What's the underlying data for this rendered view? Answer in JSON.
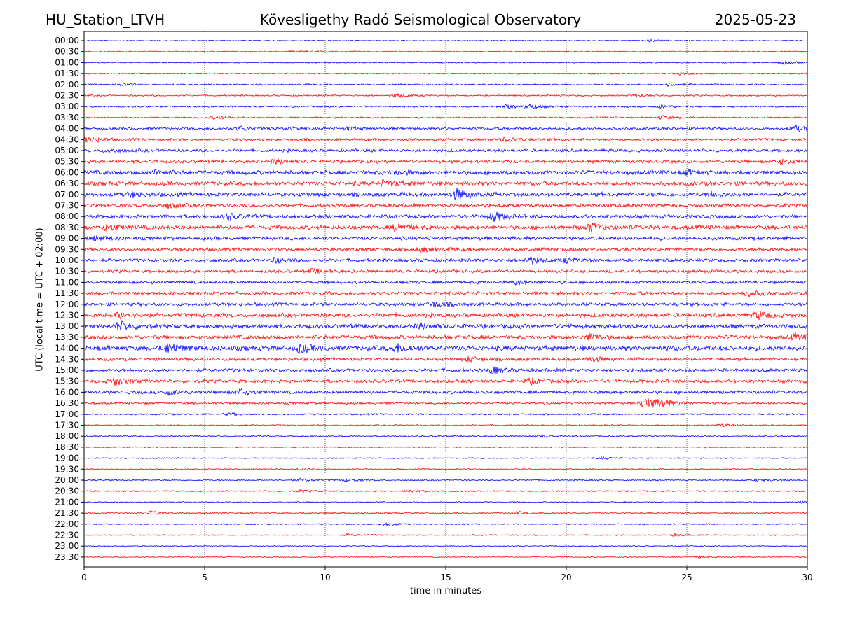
{
  "header": {
    "station": "HU_Station_LTVH",
    "title": "Kövesligethy Radó Seismological Observatory",
    "date": "2025-05-23"
  },
  "chart_data": {
    "type": "line",
    "xlabel": "time in minutes",
    "ylabel": "UTC (local time = UTC + 02:00)",
    "xlim": [
      0,
      30
    ],
    "x_ticks": [
      "0",
      "5",
      "10",
      "15",
      "20",
      "25",
      "30"
    ],
    "grid": "dotted vertical lines at 5-minute intervals",
    "trace_colors": [
      "#0000ff",
      "#ff0000"
    ],
    "rows": [
      {
        "label": "00:00",
        "noise": 0.6,
        "events": [
          [
            23.5,
            1.2
          ]
        ]
      },
      {
        "label": "00:30",
        "noise": 0.7,
        "events": [
          [
            8.8,
            1.6
          ]
        ]
      },
      {
        "label": "01:00",
        "noise": 0.7,
        "events": [
          [
            29,
            2.0
          ]
        ]
      },
      {
        "label": "01:30",
        "noise": 0.8,
        "events": [
          [
            24.8,
            2.0
          ]
        ]
      },
      {
        "label": "02:00",
        "noise": 0.9,
        "events": [
          [
            1.5,
            1.8
          ],
          [
            24.3,
            2.2
          ]
        ]
      },
      {
        "label": "02:30",
        "noise": 0.9,
        "events": [
          [
            13,
            2.5
          ],
          [
            23,
            2.2
          ]
        ]
      },
      {
        "label": "03:00",
        "noise": 1.0,
        "events": [
          [
            17.5,
            2.5
          ],
          [
            18.5,
            3
          ],
          [
            24,
            2.5
          ]
        ]
      },
      {
        "label": "03:30",
        "noise": 1.0,
        "events": [
          [
            5.5,
            2
          ],
          [
            24,
            2.5
          ]
        ]
      },
      {
        "label": "04:00",
        "noise": 1.5,
        "events": [
          [
            6.5,
            3
          ],
          [
            8.5,
            2
          ],
          [
            11,
            2
          ],
          [
            29.5,
            4
          ]
        ]
      },
      {
        "label": "04:30",
        "noise": 1.6,
        "events": [
          [
            0.2,
            4
          ],
          [
            17.5,
            3
          ]
        ]
      },
      {
        "label": "05:00",
        "noise": 1.8,
        "events": [
          [
            1,
            2.5
          ]
        ]
      },
      {
        "label": "05:30",
        "noise": 2.0,
        "events": [
          [
            8,
            2.5
          ],
          [
            29,
            3
          ]
        ]
      },
      {
        "label": "06:00",
        "noise": 2.5,
        "events": [
          [
            3,
            3
          ],
          [
            13,
            2.5
          ],
          [
            25,
            3
          ]
        ]
      },
      {
        "label": "06:30",
        "noise": 2.5,
        "events": [
          [
            12.5,
            4
          ]
        ]
      },
      {
        "label": "07:00",
        "noise": 2.5,
        "events": [
          [
            2,
            3
          ],
          [
            15.5,
            7
          ],
          [
            26,
            3
          ]
        ]
      },
      {
        "label": "07:30",
        "noise": 2.0,
        "events": [
          [
            3.5,
            3
          ]
        ]
      },
      {
        "label": "08:00",
        "noise": 2.2,
        "events": [
          [
            6,
            4
          ],
          [
            17,
            6
          ]
        ]
      },
      {
        "label": "08:30",
        "noise": 2.5,
        "events": [
          [
            1,
            4
          ],
          [
            13,
            5
          ],
          [
            21,
            6
          ]
        ]
      },
      {
        "label": "09:00",
        "noise": 2.2,
        "events": [
          [
            0.5,
            3
          ]
        ]
      },
      {
        "label": "09:30",
        "noise": 2.0,
        "events": [
          [
            14,
            3
          ]
        ]
      },
      {
        "label": "10:00",
        "noise": 2.0,
        "events": [
          [
            8,
            3
          ],
          [
            18.5,
            4.5
          ],
          [
            20,
            3
          ]
        ]
      },
      {
        "label": "10:30",
        "noise": 1.8,
        "events": [
          [
            9.5,
            3
          ]
        ]
      },
      {
        "label": "11:00",
        "noise": 1.8,
        "events": [
          [
            18,
            2.5
          ]
        ]
      },
      {
        "label": "11:30",
        "noise": 2.0,
        "events": [
          [
            27.5,
            4
          ]
        ]
      },
      {
        "label": "12:00",
        "noise": 2.0,
        "events": [
          [
            14.5,
            3.5
          ]
        ]
      },
      {
        "label": "12:30",
        "noise": 2.5,
        "events": [
          [
            1.5,
            4
          ],
          [
            28,
            4.5
          ]
        ]
      },
      {
        "label": "13:00",
        "noise": 2.5,
        "events": [
          [
            1.5,
            6
          ],
          [
            14,
            3
          ]
        ]
      },
      {
        "label": "13:30",
        "noise": 2.5,
        "events": [
          [
            21,
            5
          ],
          [
            29.5,
            4
          ]
        ]
      },
      {
        "label": "14:00",
        "noise": 3.0,
        "events": [
          [
            3.5,
            6
          ],
          [
            9,
            5
          ],
          [
            13,
            5
          ]
        ]
      },
      {
        "label": "14:30",
        "noise": 2.0,
        "events": [
          [
            16,
            3
          ],
          [
            21,
            3
          ]
        ]
      },
      {
        "label": "15:00",
        "noise": 2.0,
        "events": [
          [
            17,
            4.5
          ]
        ]
      },
      {
        "label": "15:30",
        "noise": 2.0,
        "events": [
          [
            1.3,
            5
          ],
          [
            18.5,
            3.5
          ]
        ]
      },
      {
        "label": "16:00",
        "noise": 2.0,
        "events": [
          [
            3.5,
            3.5
          ],
          [
            6.5,
            4.5
          ]
        ]
      },
      {
        "label": "16:30",
        "noise": 1.3,
        "events": [
          [
            23.3,
            9
          ],
          [
            24,
            5
          ]
        ]
      },
      {
        "label": "17:00",
        "noise": 1.0,
        "events": [
          [
            6,
            1.5
          ]
        ]
      },
      {
        "label": "17:30",
        "noise": 0.8,
        "events": [
          [
            26.5,
            1.8
          ]
        ]
      },
      {
        "label": "18:00",
        "noise": 0.8,
        "events": [
          [
            19,
            1.5
          ]
        ]
      },
      {
        "label": "18:30",
        "noise": 0.7,
        "events": []
      },
      {
        "label": "19:00",
        "noise": 0.7,
        "events": [
          [
            21.5,
            1.5
          ]
        ]
      },
      {
        "label": "19:30",
        "noise": 0.7,
        "events": [
          [
            9,
            1.3
          ]
        ]
      },
      {
        "label": "20:00",
        "noise": 0.8,
        "events": [
          [
            9,
            2
          ],
          [
            11,
            2
          ],
          [
            28,
            1.5
          ]
        ]
      },
      {
        "label": "20:30",
        "noise": 0.8,
        "events": [
          [
            9,
            1.8
          ],
          [
            13.5,
            2
          ]
        ]
      },
      {
        "label": "21:00",
        "noise": 0.7,
        "events": [
          [
            29.8,
            1.5
          ]
        ]
      },
      {
        "label": "21:30",
        "noise": 0.8,
        "events": [
          [
            2.8,
            2.5
          ],
          [
            18,
            1.8
          ]
        ]
      },
      {
        "label": "22:00",
        "noise": 0.7,
        "events": [
          [
            12.5,
            2
          ]
        ]
      },
      {
        "label": "22:30",
        "noise": 0.7,
        "events": [
          [
            11,
            1.5
          ],
          [
            24.5,
            1.5
          ]
        ]
      },
      {
        "label": "23:00",
        "noise": 0.6,
        "events": []
      },
      {
        "label": "23:30",
        "noise": 0.6,
        "events": [
          [
            25.5,
            1.2
          ]
        ]
      }
    ]
  }
}
